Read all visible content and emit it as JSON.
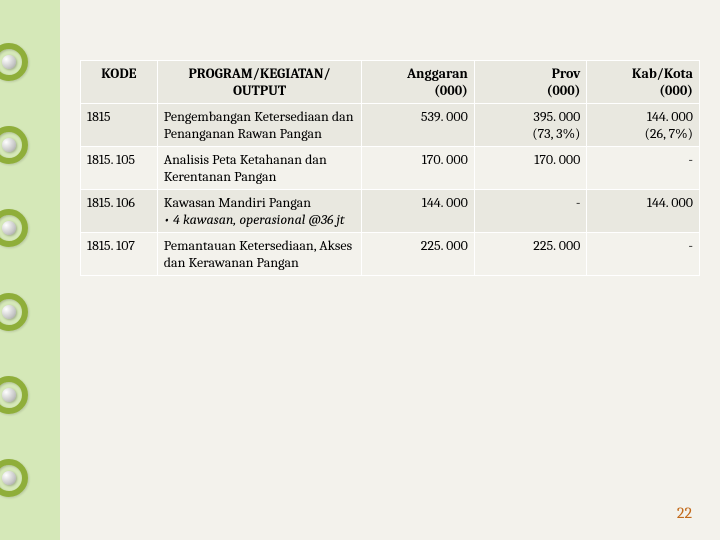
{
  "page_number": "22",
  "table": {
    "headers": {
      "kode": "KODE",
      "program_line1": "PROGRAM/KEGIATAN/",
      "program_line2": "OUTPUT",
      "anggaran_line1": "Anggaran",
      "anggaran_line2": "(000)",
      "prov_line1": "Prov",
      "prov_line2": "(000)",
      "kabkota_line1": "Kab/Kota",
      "kabkota_line2": "(000)"
    },
    "rows": [
      {
        "kode": "1815",
        "program": "Pengembangan Ketersediaan dan Penanganan Rawan Pangan",
        "anggaran": "539. 000",
        "prov_line1": "395. 000",
        "prov_line2": "(73, 3%)",
        "kabkota_line1": "144. 000",
        "kabkota_line2": "(26, 7%)"
      },
      {
        "kode": "1815. 105",
        "program": "Analisis Peta Ketahanan dan Kerentanan Pangan",
        "anggaran": "170. 000",
        "prov": "170. 000",
        "kabkota": "-"
      },
      {
        "kode": "1815. 106",
        "program_line1": "Kawasan Mandiri Pangan",
        "program_sub": "• 4 kawasan, operasional @36 jt",
        "anggaran": "144. 000",
        "prov": "-",
        "kabkota": "144. 000"
      },
      {
        "kode": "1815. 107",
        "program": "Pemantauan Ketersediaan, Akses dan Kerawanan Pangan",
        "anggaran": "225. 000",
        "prov": "225. 000",
        "kabkota": "-"
      }
    ]
  },
  "colors": {
    "page_bg": "#d5e8b8",
    "slide_bg": "#f3f2ec",
    "ring": "#8fae3a",
    "page_num": "#c26a1a"
  }
}
